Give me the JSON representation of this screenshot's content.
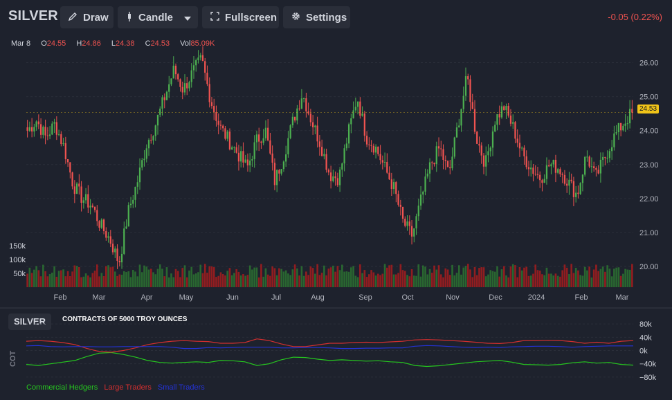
{
  "toolbar": {
    "symbol": "SILVER",
    "draw_label": "Draw",
    "candle_label": "Candle",
    "fullscreen_label": "Fullscreen",
    "settings_label": "Settings",
    "change": "-0.05 (0.22%)"
  },
  "ohlc": {
    "date": "Mar 8",
    "o_label": "O",
    "o": "24.55",
    "h_label": "H",
    "h": "24.86",
    "l_label": "L",
    "l": "24.38",
    "c_label": "C",
    "c": "24.53",
    "vol_label": "Vol",
    "vol": "85.09K"
  },
  "last_price": "24.53",
  "cot": {
    "symbol": "SILVER",
    "title": "CONTRACTS OF 5000 TROY OUNCES",
    "axis_label": "COT",
    "legend": [
      "Commercial Hedgers",
      "Large Traders",
      "Small Traders"
    ]
  },
  "colors": {
    "up": "#26a69a",
    "up_candle": "#4caf50",
    "down": "#ef5350",
    "commercial": "#26c81f",
    "large": "#d32f2f",
    "small": "#2432d6",
    "background": "#1e222d"
  },
  "chart_data": [
    {
      "type": "candlestick",
      "title": "SILVER",
      "x_ticks": [
        "Feb",
        "Mar",
        "Apr",
        "May",
        "Jun",
        "Jul",
        "Aug",
        "Sep",
        "Oct",
        "Nov",
        "Dec",
        "2024",
        "Feb",
        "Mar"
      ],
      "y_ticks": [
        20.0,
        21.0,
        22.0,
        23.0,
        24.0,
        25.0,
        26.0
      ],
      "ylim": [
        19.45,
        26.5
      ],
      "volume_ticks": [
        "50k",
        "100k",
        "150k"
      ],
      "close_series": [
        24.0,
        24.3,
        23.8,
        24.2,
        23.5,
        22.4,
        22.0,
        21.8,
        21.2,
        20.8,
        20.1,
        21.6,
        22.5,
        23.6,
        24.2,
        25.0,
        25.8,
        25.2,
        25.7,
        26.1,
        24.9,
        24.1,
        23.7,
        23.3,
        22.9,
        23.7,
        24.0,
        22.5,
        23.3,
        24.3,
        25.1,
        24.3,
        23.6,
        22.7,
        22.6,
        23.9,
        25.0,
        23.8,
        23.5,
        22.9,
        22.3,
        21.3,
        20.9,
        22.0,
        23.0,
        23.5,
        22.7,
        24.2,
        25.6,
        23.8,
        23.0,
        24.3,
        24.7,
        24.1,
        23.3,
        22.9,
        22.6,
        23.0,
        22.9,
        22.5,
        22.1,
        23.3,
        22.6,
        23.2,
        23.8,
        24.2,
        24.53
      ]
    },
    {
      "type": "line",
      "title": "CONTRACTS OF 5000 TROY OUNCES",
      "y_ticks": [
        "80k",
        "40k",
        "0k",
        "−40k",
        "−80k"
      ],
      "ylim": [
        -95000,
        95000
      ],
      "series": [
        {
          "name": "Commercial Hedgers",
          "values": [
            -42,
            -45,
            -40,
            -35,
            -30,
            -18,
            -8,
            -6,
            -12,
            -20,
            -30,
            -36,
            -38,
            -36,
            -34,
            -36,
            -30,
            -31,
            -34,
            -45,
            -40,
            -28,
            -20,
            -21,
            -26,
            -30,
            -28,
            -30,
            -32,
            -31,
            -34,
            -36,
            -45,
            -48,
            -46,
            -42,
            -38,
            -34,
            -32,
            -30,
            -35,
            -42,
            -43,
            -44,
            -42,
            -37,
            -34,
            -38,
            -36,
            -42,
            -44
          ]
        },
        {
          "name": "Large Traders",
          "values": [
            28,
            30,
            28,
            24,
            18,
            6,
            -3,
            -5,
            0,
            8,
            18,
            24,
            28,
            30,
            28,
            27,
            22,
            22,
            24,
            35,
            30,
            20,
            12,
            12,
            17,
            22,
            22,
            24,
            25,
            24,
            26,
            28,
            32,
            33,
            32,
            30,
            28,
            25,
            22,
            21,
            24,
            30,
            30,
            31,
            30,
            27,
            22,
            25,
            22,
            28,
            30
          ]
        },
        {
          "name": "Small Traders",
          "values": [
            14,
            15,
            12,
            11,
            12,
            12,
            11,
            11,
            12,
            12,
            12,
            12,
            10,
            6,
            6,
            9,
            8,
            9,
            10,
            10,
            10,
            8,
            8,
            9,
            9,
            8,
            6,
            6,
            7,
            7,
            8,
            8,
            13,
            15,
            14,
            12,
            10,
            9,
            10,
            9,
            11,
            12,
            13,
            13,
            12,
            10,
            12,
            13,
            14,
            14,
            14
          ]
        }
      ]
    }
  ]
}
